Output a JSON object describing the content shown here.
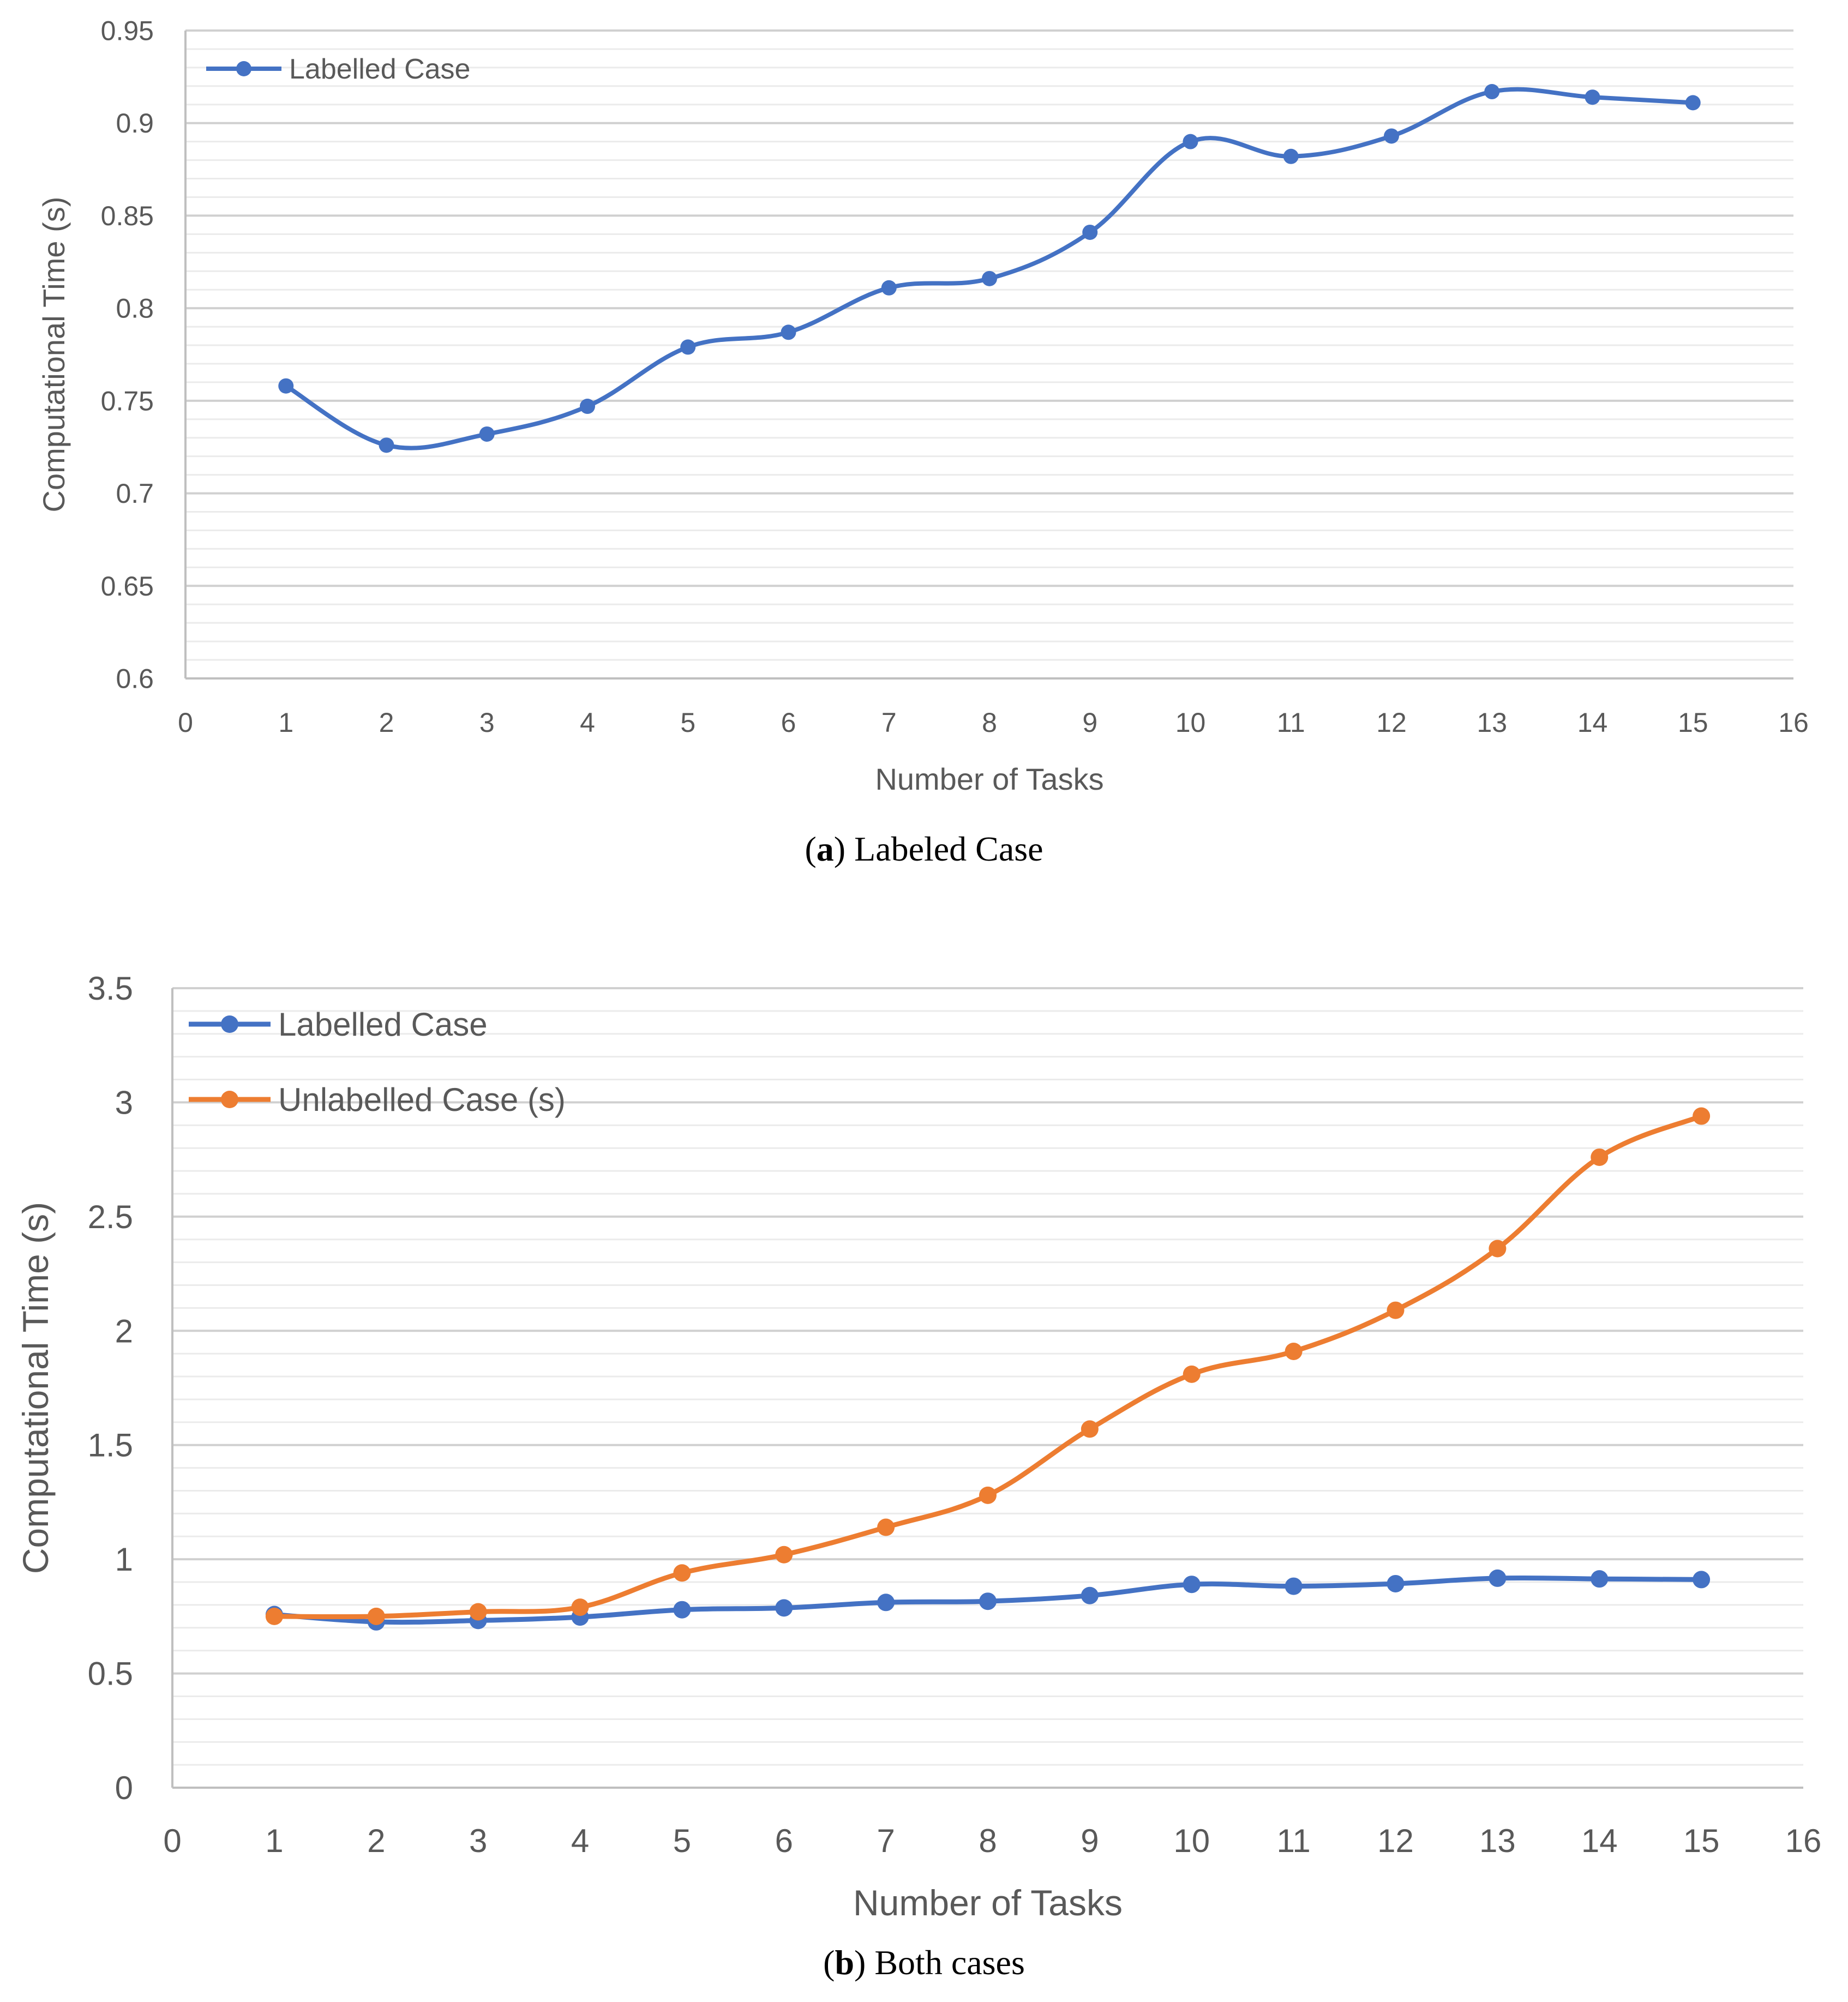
{
  "chart_data": [
    {
      "type": "line",
      "title": "",
      "caption_letter": "a",
      "caption_text": ") Labeled Case",
      "caption_open": "(",
      "xlabel": "Number of Tasks",
      "ylabel": "Computational Time (s)",
      "xlim": [
        0,
        16
      ],
      "ylim": [
        0.6,
        0.95
      ],
      "x_ticks": [
        "0",
        "1",
        "2",
        "3",
        "4",
        "5",
        "6",
        "7",
        "8",
        "9",
        "10",
        "11",
        "12",
        "13",
        "14",
        "15",
        "16"
      ],
      "y_ticks": [
        "0.6",
        "0.65",
        "0.7",
        "0.75",
        "0.8",
        "0.85",
        "0.9",
        "0.95"
      ],
      "grid": true,
      "legend_position": "top-left",
      "series": [
        {
          "name": "Labelled Case",
          "color": "#4472C4",
          "x": [
            1,
            2,
            3,
            4,
            5,
            6,
            7,
            8,
            9,
            10,
            11,
            12,
            13,
            14,
            15
          ],
          "values": [
            0.758,
            0.726,
            0.732,
            0.747,
            0.779,
            0.787,
            0.811,
            0.816,
            0.841,
            0.89,
            0.882,
            0.893,
            0.917,
            0.914,
            0.911
          ]
        }
      ]
    },
    {
      "type": "line",
      "title": "",
      "caption_letter": "b",
      "caption_text": ") Both cases",
      "caption_open": "(",
      "xlabel": "Number of Tasks",
      "ylabel": "Computational Time (s)",
      "xlim": [
        0,
        16
      ],
      "ylim": [
        0,
        3.5
      ],
      "x_ticks": [
        "0",
        "1",
        "2",
        "3",
        "4",
        "5",
        "6",
        "7",
        "8",
        "9",
        "10",
        "11",
        "12",
        "13",
        "14",
        "15",
        "16"
      ],
      "y_ticks": [
        "0",
        "0.5",
        "1",
        "1.5",
        "2",
        "2.5",
        "3",
        "3.5"
      ],
      "grid": true,
      "legend_position": "top-left",
      "series": [
        {
          "name": "Labelled Case",
          "color": "#4472C4",
          "x": [
            1,
            2,
            3,
            4,
            5,
            6,
            7,
            8,
            9,
            10,
            11,
            12,
            13,
            14,
            15
          ],
          "values": [
            0.758,
            0.726,
            0.732,
            0.747,
            0.779,
            0.787,
            0.811,
            0.816,
            0.841,
            0.89,
            0.882,
            0.893,
            0.917,
            0.914,
            0.911
          ]
        },
        {
          "name": "Unlabelled Case (s)",
          "color": "#ED7D31",
          "x": [
            1,
            2,
            3,
            4,
            5,
            6,
            7,
            8,
            9,
            10,
            11,
            12,
            13,
            14,
            15
          ],
          "values": [
            0.75,
            0.75,
            0.77,
            0.79,
            0.94,
            1.02,
            1.14,
            1.28,
            1.57,
            1.81,
            1.91,
            2.09,
            2.36,
            2.76,
            2.94
          ]
        }
      ]
    }
  ]
}
